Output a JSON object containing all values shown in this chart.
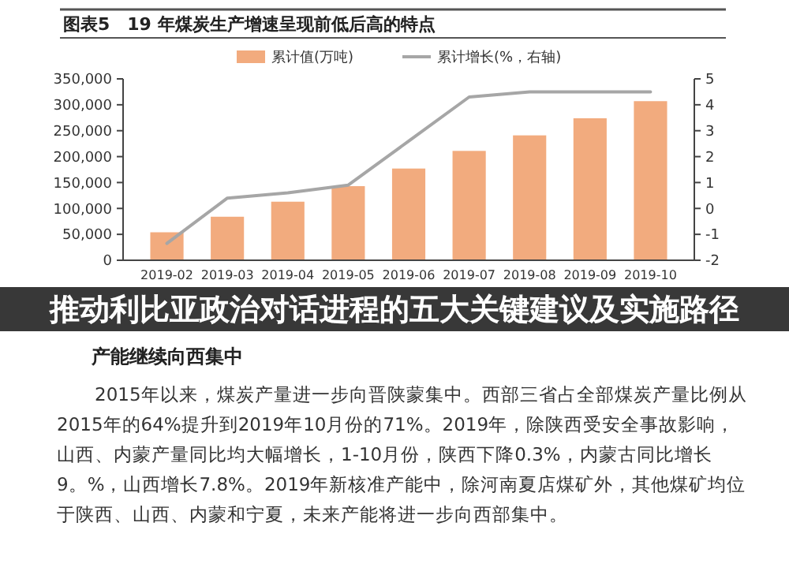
{
  "chart_data": {
    "type": "bar",
    "title": "图表5　19 年煤炭生产增速呈现前低后高的特点",
    "categories": [
      "2019-02",
      "2019-03",
      "2019-04",
      "2019-05",
      "2019-06",
      "2019-07",
      "2019-08",
      "2019-09",
      "2019-10"
    ],
    "series": [
      {
        "name": "累计值(万吨)",
        "color": "#f2ab7e",
        "values": [
          54000,
          84000,
          113000,
          143000,
          177000,
          211000,
          241000,
          274000,
          307000
        ]
      },
      {
        "name": "累计增长(%，右轴)",
        "type": "line",
        "axis": "y2",
        "color": "#a6a6a6",
        "values": [
          -1.35,
          0.4,
          0.6,
          0.9,
          2.6,
          4.3,
          4.5,
          4.5,
          4.5
        ]
      }
    ],
    "ylim": [
      0,
      350000
    ],
    "yticks": [
      {
        "value": 0,
        "label": "0"
      },
      {
        "value": 50000,
        "label": "50,000"
      },
      {
        "value": 100000,
        "label": "100,000"
      },
      {
        "value": 150000,
        "label": "150,000"
      },
      {
        "value": 200000,
        "label": "200,000"
      },
      {
        "value": 250000,
        "label": "250,000"
      },
      {
        "value": 300000,
        "label": "300,000"
      },
      {
        "value": 350000,
        "label": "350,000"
      }
    ],
    "y2lim": [
      -2,
      5
    ],
    "y2ticks": [
      -2,
      -1,
      0,
      1,
      2,
      3,
      4,
      5
    ],
    "legend": "top",
    "grid": false,
    "annotations": [
      "推动利比亚政治对话进程的五大关键建议及实施路径",
      "产能继续向西集中",
      "2015年以来，煤炭产量进一步向晋陕蒙集中。西部三省占全部煤炭产量比例从",
      "2015年的64%提升到2019年10月份的71%。2019年，除陕西受安全事故影响，",
      "山西、内蒙产量同比均大幅增长，1-10月份，陕西下降0.3%，内蒙古同比增长",
      "9。%，山西增长7.8%。2019年新核准产能中，除河南夏店煤矿外，其他煤矿均位",
      "于陕西、山西、内蒙和宁夏，未来产能将进一步向西部集中。"
    ]
  }
}
